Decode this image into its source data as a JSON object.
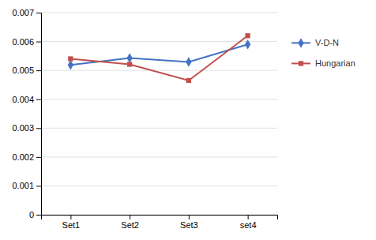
{
  "chart_data": {
    "type": "line",
    "categories": [
      "Set1",
      "Set2",
      "Set3",
      "set4"
    ],
    "series": [
      {
        "name": "V-D-N",
        "color": "#4472C4",
        "marker": "diamond",
        "values": [
          0.00519,
          0.00543,
          0.00529,
          0.0059
        ]
      },
      {
        "name": "Hungarian",
        "color": "#C0504D",
        "marker": "square",
        "values": [
          0.0054,
          0.00521,
          0.00465,
          0.0062
        ]
      }
    ],
    "ylim": [
      0,
      0.007
    ],
    "yticks": [
      0,
      0.001,
      0.002,
      0.003,
      0.004,
      0.005,
      0.006,
      0.007
    ],
    "grid": true,
    "legend": "right"
  }
}
